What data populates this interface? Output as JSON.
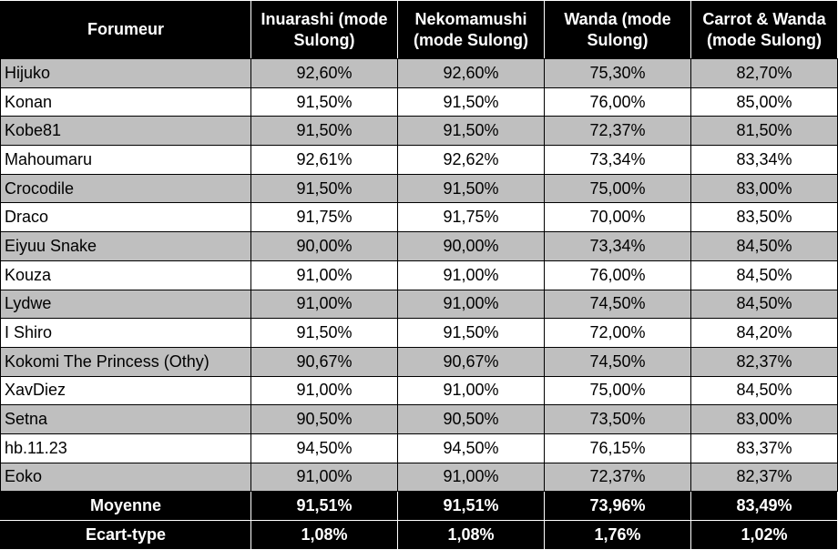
{
  "table": {
    "header": [
      "Forumeur",
      "Inuarashi (mode Sulong)",
      "Nekomamushi (mode Sulong)",
      "Wanda (mode Sulong)",
      "Carrot & Wanda (mode Sulong)"
    ],
    "rows": [
      [
        "Hijuko",
        "92,60%",
        "92,60%",
        "75,30%",
        "82,70%"
      ],
      [
        "Konan",
        "91,50%",
        "91,50%",
        "76,00%",
        "85,00%"
      ],
      [
        "Kobe81",
        "91,50%",
        "91,50%",
        "72,37%",
        "81,50%"
      ],
      [
        "Mahoumaru",
        "92,61%",
        "92,62%",
        "73,34%",
        "83,34%"
      ],
      [
        "Crocodile",
        "91,50%",
        "91,50%",
        "75,00%",
        "83,00%"
      ],
      [
        "Draco",
        "91,75%",
        "91,75%",
        "70,00%",
        "83,50%"
      ],
      [
        "Eiyuu Snake",
        "90,00%",
        "90,00%",
        "73,34%",
        "84,50%"
      ],
      [
        "Kouza",
        "91,00%",
        "91,00%",
        "76,00%",
        "84,50%"
      ],
      [
        "Lydwe",
        "91,00%",
        "91,00%",
        "74,50%",
        "84,50%"
      ],
      [
        "I Shiro",
        "91,50%",
        "91,50%",
        "72,00%",
        "84,20%"
      ],
      [
        "Kokomi The Princess (Othy)",
        "90,67%",
        "90,67%",
        "74,50%",
        "82,37%"
      ],
      [
        "XavDiez",
        "91,00%",
        "91,00%",
        "75,00%",
        "84,50%"
      ],
      [
        "Setna",
        "90,50%",
        "90,50%",
        "73,50%",
        "83,00%"
      ],
      [
        "hb.11.23",
        "94,50%",
        "94,50%",
        "76,15%",
        "83,37%"
      ],
      [
        "Eoko",
        "91,00%",
        "91,00%",
        "72,37%",
        "82,37%"
      ]
    ],
    "footer": [
      [
        "Moyenne",
        "91,51%",
        "91,51%",
        "73,96%",
        "83,49%"
      ],
      [
        "Ecart-type",
        "1,08%",
        "1,08%",
        "1,76%",
        "1,02%"
      ]
    ]
  }
}
